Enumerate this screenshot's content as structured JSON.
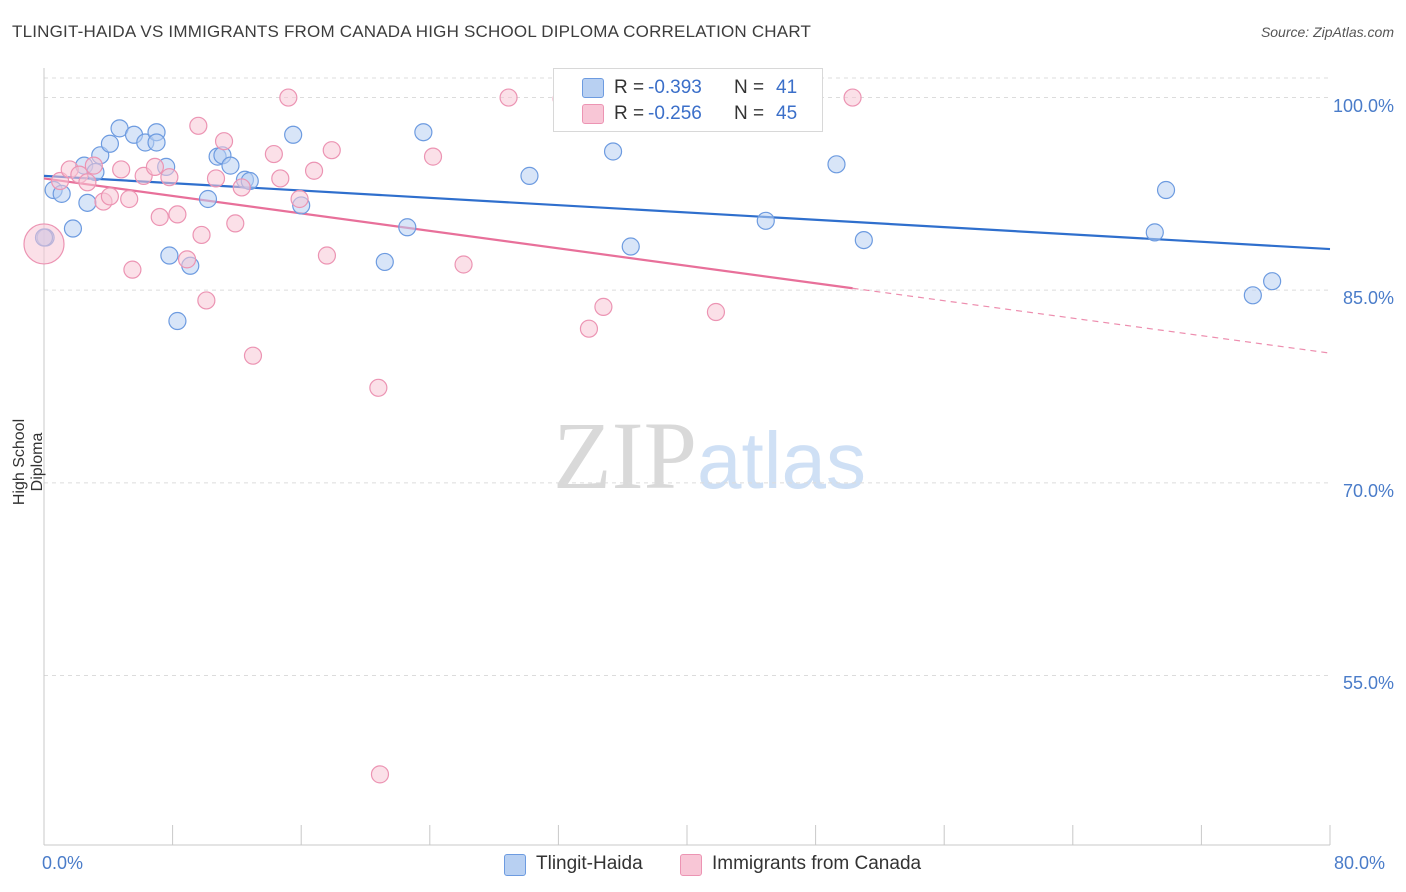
{
  "header": {
    "title": "TLINGIT-HAIDA VS IMMIGRANTS FROM CANADA HIGH SCHOOL DIPLOMA CORRELATION CHART",
    "source": "Source: ZipAtlas.com"
  },
  "watermark": {
    "zip": "ZIP",
    "atlas": "atlas"
  },
  "legend": {
    "rows": [
      {
        "r_label": "R = ",
        "r_value": "-0.393",
        "n_label": "N = ",
        "n_value": "41"
      },
      {
        "r_label": "R = ",
        "r_value": "-0.256",
        "n_label": "N = ",
        "n_value": "45"
      }
    ]
  },
  "bottom_legend": {
    "series1": "Tlingit-Haida",
    "series2": "Immigrants from Canada"
  },
  "colors": {
    "blue_fill": "#b8d0f2",
    "blue_stroke": "#6d9be0",
    "blue_line": "#2f6fcd",
    "pink_fill": "#f8c6d6",
    "pink_stroke": "#ec94b3",
    "pink_line": "#e8709a",
    "grid": "#dcdcdc",
    "tick_label": "#4a7cc9"
  },
  "chart_data": {
    "type": "scatter",
    "title": "TLINGIT-HAIDA VS IMMIGRANTS FROM CANADA HIGH SCHOOL DIPLOMA CORRELATION CHART",
    "xlabel": "",
    "ylabel": "High School Diploma",
    "x_tick_labels": [
      "0.0%",
      "80.0%"
    ],
    "y_tick_labels": [
      "100.0%",
      "85.0%",
      "70.0%",
      "55.0%"
    ],
    "y_ticks": [
      100,
      85,
      70,
      55
    ],
    "xlim": [
      0,
      80
    ],
    "ylim": [
      41.8,
      102.3
    ],
    "grid": true,
    "legend_position": "top-center",
    "series": [
      {
        "name": "Tlingit-Haida",
        "r": -0.393,
        "n": 41,
        "trend": {
          "x0": 0,
          "y0": 93.9,
          "x1": 80,
          "y1": 88.2,
          "dashed_from": null
        },
        "points": [
          [
            0.1,
            89.1
          ],
          [
            0.6,
            92.8
          ],
          [
            1.1,
            92.5
          ],
          [
            1.8,
            89.8
          ],
          [
            2.5,
            94.7
          ],
          [
            2.7,
            91.8
          ],
          [
            3.2,
            94.2
          ],
          [
            3.5,
            95.5
          ],
          [
            4.1,
            96.4
          ],
          [
            4.7,
            97.6
          ],
          [
            5.6,
            97.1
          ],
          [
            6.3,
            96.5
          ],
          [
            7.0,
            97.3
          ],
          [
            7.0,
            96.5
          ],
          [
            7.6,
            94.6
          ],
          [
            7.8,
            87.7
          ],
          [
            8.3,
            82.6
          ],
          [
            9.1,
            86.9
          ],
          [
            10.2,
            92.1
          ],
          [
            10.8,
            95.4
          ],
          [
            11.1,
            95.5
          ],
          [
            11.6,
            94.7
          ],
          [
            12.5,
            93.6
          ],
          [
            12.8,
            93.5
          ],
          [
            15.5,
            97.1
          ],
          [
            16.0,
            91.6
          ],
          [
            21.2,
            87.2
          ],
          [
            22.6,
            89.9
          ],
          [
            23.6,
            97.3
          ],
          [
            30.2,
            93.9
          ],
          [
            35.4,
            95.8
          ],
          [
            36.5,
            88.4
          ],
          [
            40.0,
            99.8
          ],
          [
            44.9,
            90.4
          ],
          [
            49.3,
            94.8
          ],
          [
            51.0,
            88.9
          ],
          [
            69.1,
            89.5
          ],
          [
            69.8,
            92.8
          ],
          [
            75.2,
            84.6
          ],
          [
            76.4,
            85.7
          ],
          [
            0.0,
            89.1
          ]
        ]
      },
      {
        "name": "Immigrants from Canada",
        "r": -0.256,
        "n": 45,
        "trend": {
          "x0": 0,
          "y0": 93.7,
          "x1": 80,
          "y1": 80.1,
          "dashed_from": 50.3
        },
        "points": [
          [
            0.0,
            88.6
          ],
          [
            1.0,
            93.5
          ],
          [
            1.6,
            94.4
          ],
          [
            2.2,
            94.0
          ],
          [
            2.7,
            93.4
          ],
          [
            3.1,
            94.7
          ],
          [
            3.7,
            91.9
          ],
          [
            4.1,
            92.3
          ],
          [
            4.8,
            94.4
          ],
          [
            5.3,
            92.1
          ],
          [
            5.5,
            86.6
          ],
          [
            6.2,
            93.9
          ],
          [
            6.9,
            94.6
          ],
          [
            7.2,
            90.7
          ],
          [
            7.8,
            93.8
          ],
          [
            8.3,
            90.9
          ],
          [
            8.9,
            87.4
          ],
          [
            9.6,
            97.8
          ],
          [
            9.8,
            89.3
          ],
          [
            10.1,
            84.2
          ],
          [
            10.7,
            93.7
          ],
          [
            11.2,
            96.6
          ],
          [
            11.9,
            90.2
          ],
          [
            12.3,
            93.0
          ],
          [
            13.0,
            79.9
          ],
          [
            14.3,
            95.6
          ],
          [
            14.7,
            93.7
          ],
          [
            15.2,
            100.0
          ],
          [
            15.9,
            92.1
          ],
          [
            16.8,
            94.3
          ],
          [
            17.6,
            87.7
          ],
          [
            17.9,
            95.9
          ],
          [
            20.8,
            77.4
          ],
          [
            24.2,
            95.4
          ],
          [
            26.1,
            87.0
          ],
          [
            28.9,
            100.0
          ],
          [
            32.2,
            99.9
          ],
          [
            33.3,
            100.0
          ],
          [
            33.9,
            82.0
          ],
          [
            34.8,
            83.7
          ],
          [
            41.8,
            83.3
          ],
          [
            50.3,
            100.0
          ],
          [
            20.9,
            47.3
          ],
          [
            34.2,
            100.0
          ],
          [
            44.6,
            100.0
          ]
        ]
      }
    ]
  }
}
